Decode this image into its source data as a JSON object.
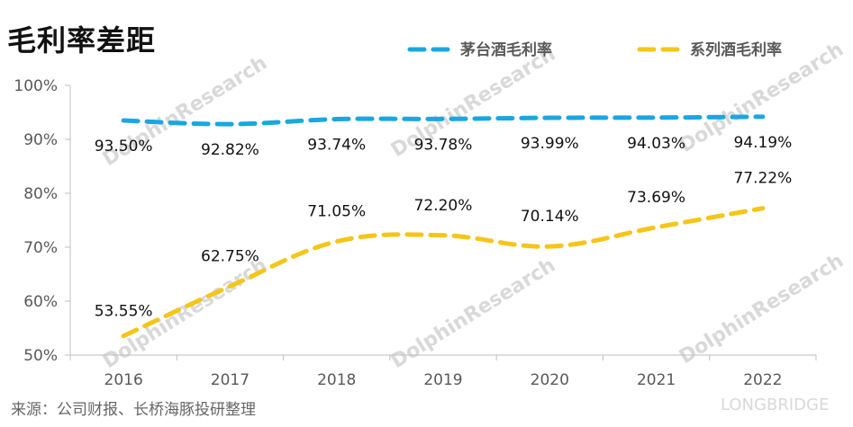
{
  "title": "毛利率差距",
  "source": "来源：公司财报、长桥海豚投研整理",
  "watermark": {
    "brand": "LONGBRIDGE",
    "text": "DolphinResearch"
  },
  "chart_data": {
    "type": "line",
    "categories": [
      "2016",
      "2017",
      "2018",
      "2019",
      "2020",
      "2021",
      "2022"
    ],
    "y_ticks": [
      "50%",
      "60%",
      "70%",
      "80%",
      "90%",
      "100%"
    ],
    "ylim": [
      50,
      100
    ],
    "legend_position": "top-right",
    "grid": false,
    "series": [
      {
        "name": "茅台酒毛利率",
        "color": "#1aa7e0",
        "values": [
          93.5,
          92.82,
          93.74,
          93.78,
          93.99,
          94.03,
          94.19
        ],
        "labels": [
          "93.50%",
          "92.82%",
          "93.74%",
          "93.78%",
          "93.99%",
          "94.03%",
          "94.19%"
        ]
      },
      {
        "name": "系列酒毛利率",
        "color": "#f5c518",
        "values": [
          53.55,
          62.75,
          71.05,
          72.2,
          70.14,
          73.69,
          77.22
        ],
        "labels": [
          "53.55%",
          "62.75%",
          "71.05%",
          "72.20%",
          "70.14%",
          "73.69%",
          "77.22%"
        ]
      }
    ]
  }
}
